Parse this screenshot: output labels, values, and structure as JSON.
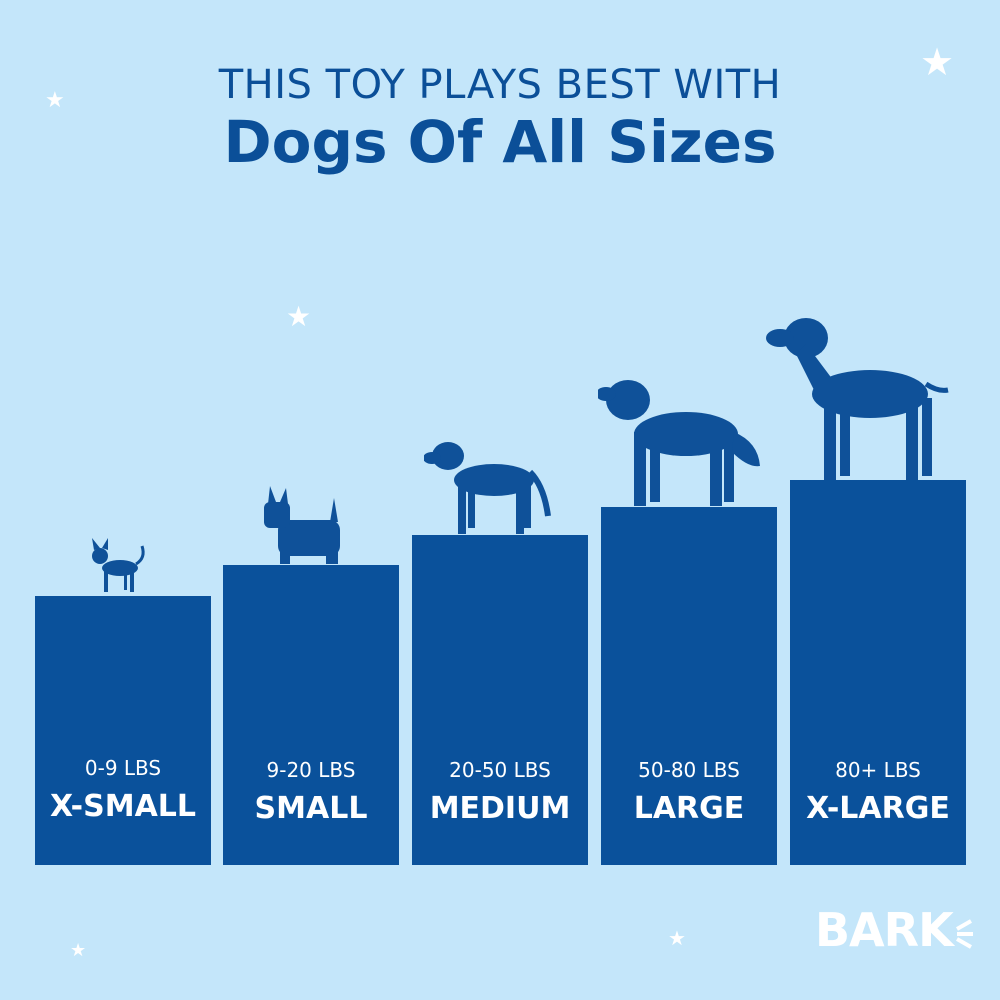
{
  "heading": {
    "line1": "THIS TOY PLAYS BEST WITH",
    "line2": "Dogs Of All Sizes"
  },
  "colors": {
    "background": "#c4e6fa",
    "bar": "#0a519b",
    "text": "#0b4f98"
  },
  "sizes": [
    {
      "weight": "0-9 LBS",
      "label": "X-SMALL",
      "icon": "chihuahua-silhouette-icon"
    },
    {
      "weight": "9-20 LBS",
      "label": "SMALL",
      "icon": "scottish-terrier-silhouette-icon"
    },
    {
      "weight": "20-50 LBS",
      "label": "MEDIUM",
      "icon": "labrador-silhouette-icon"
    },
    {
      "weight": "50-80 LBS",
      "label": "LARGE",
      "icon": "golden-retriever-silhouette-icon"
    },
    {
      "weight": "80+ LBS",
      "label": "X-LARGE",
      "icon": "great-dane-silhouette-icon"
    }
  ],
  "logo": "BARK"
}
